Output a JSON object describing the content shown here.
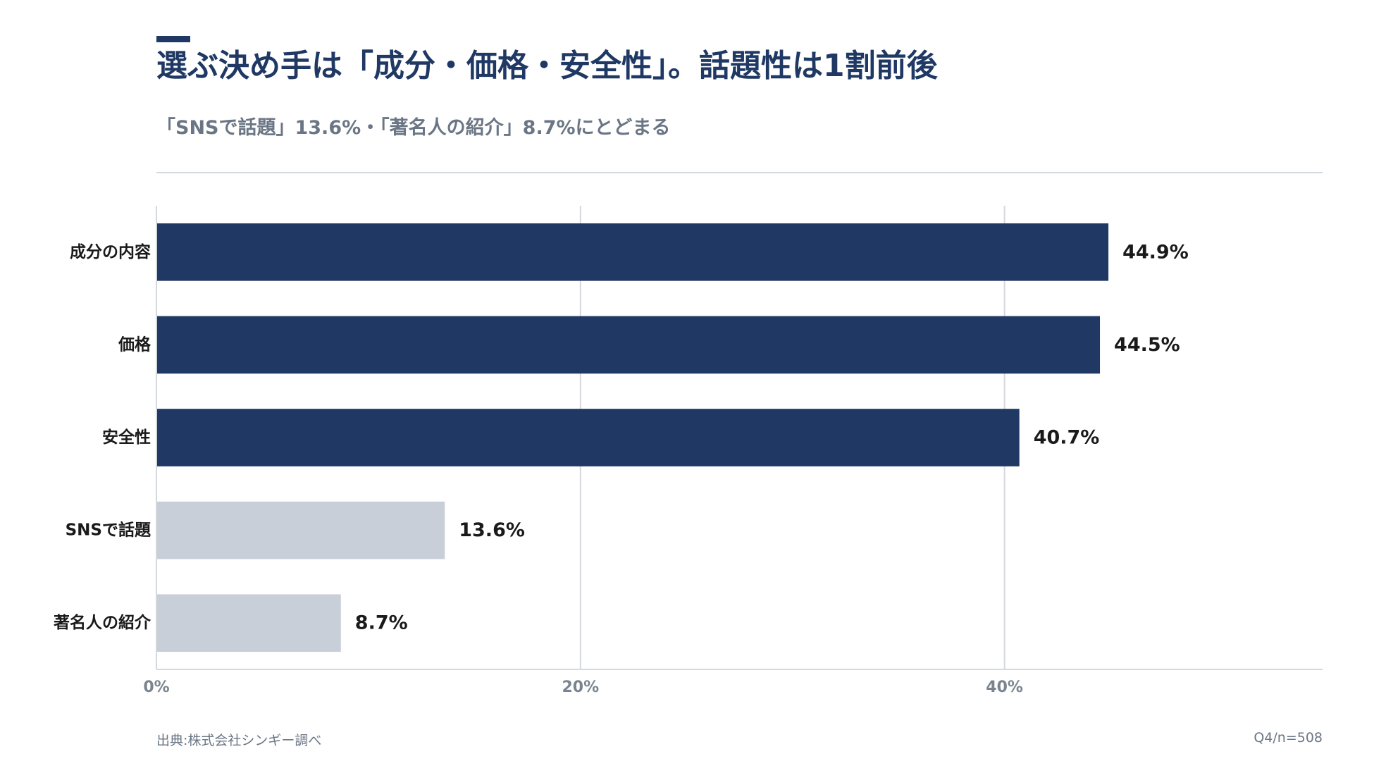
{
  "title": "選ぶ決め手は「成分・価格・安全性」。話題性は1割前後",
  "subtitle": "「SNSで話題」13.6%・「著名人の紹介」8.7%にとどまる",
  "footer": {
    "source": "出典:株式会社シンギー調べ",
    "note": "Q4/n=508"
  },
  "colors": {
    "highlight": "#1f3864",
    "muted": "#c9cfd9",
    "grid": "#d4d9de",
    "label": "#1a1a1a",
    "axis_text": "#7a8490"
  },
  "chart_data": {
    "type": "bar",
    "orientation": "horizontal",
    "categories": [
      "成分の内容",
      "価格",
      "安全性",
      "SNSで話題",
      "著名人の紹介"
    ],
    "values": [
      44.9,
      44.5,
      40.7,
      13.6,
      8.7
    ],
    "value_labels": [
      "44.9%",
      "44.5%",
      "40.7%",
      "13.6%",
      "8.7%"
    ],
    "highlighted": [
      true,
      true,
      true,
      false,
      false
    ],
    "xlim": [
      0,
      55
    ],
    "x_ticks": [
      0,
      20,
      40
    ],
    "x_tick_labels": [
      "0%",
      "20%",
      "40%"
    ],
    "grid": true,
    "legend": "none"
  }
}
